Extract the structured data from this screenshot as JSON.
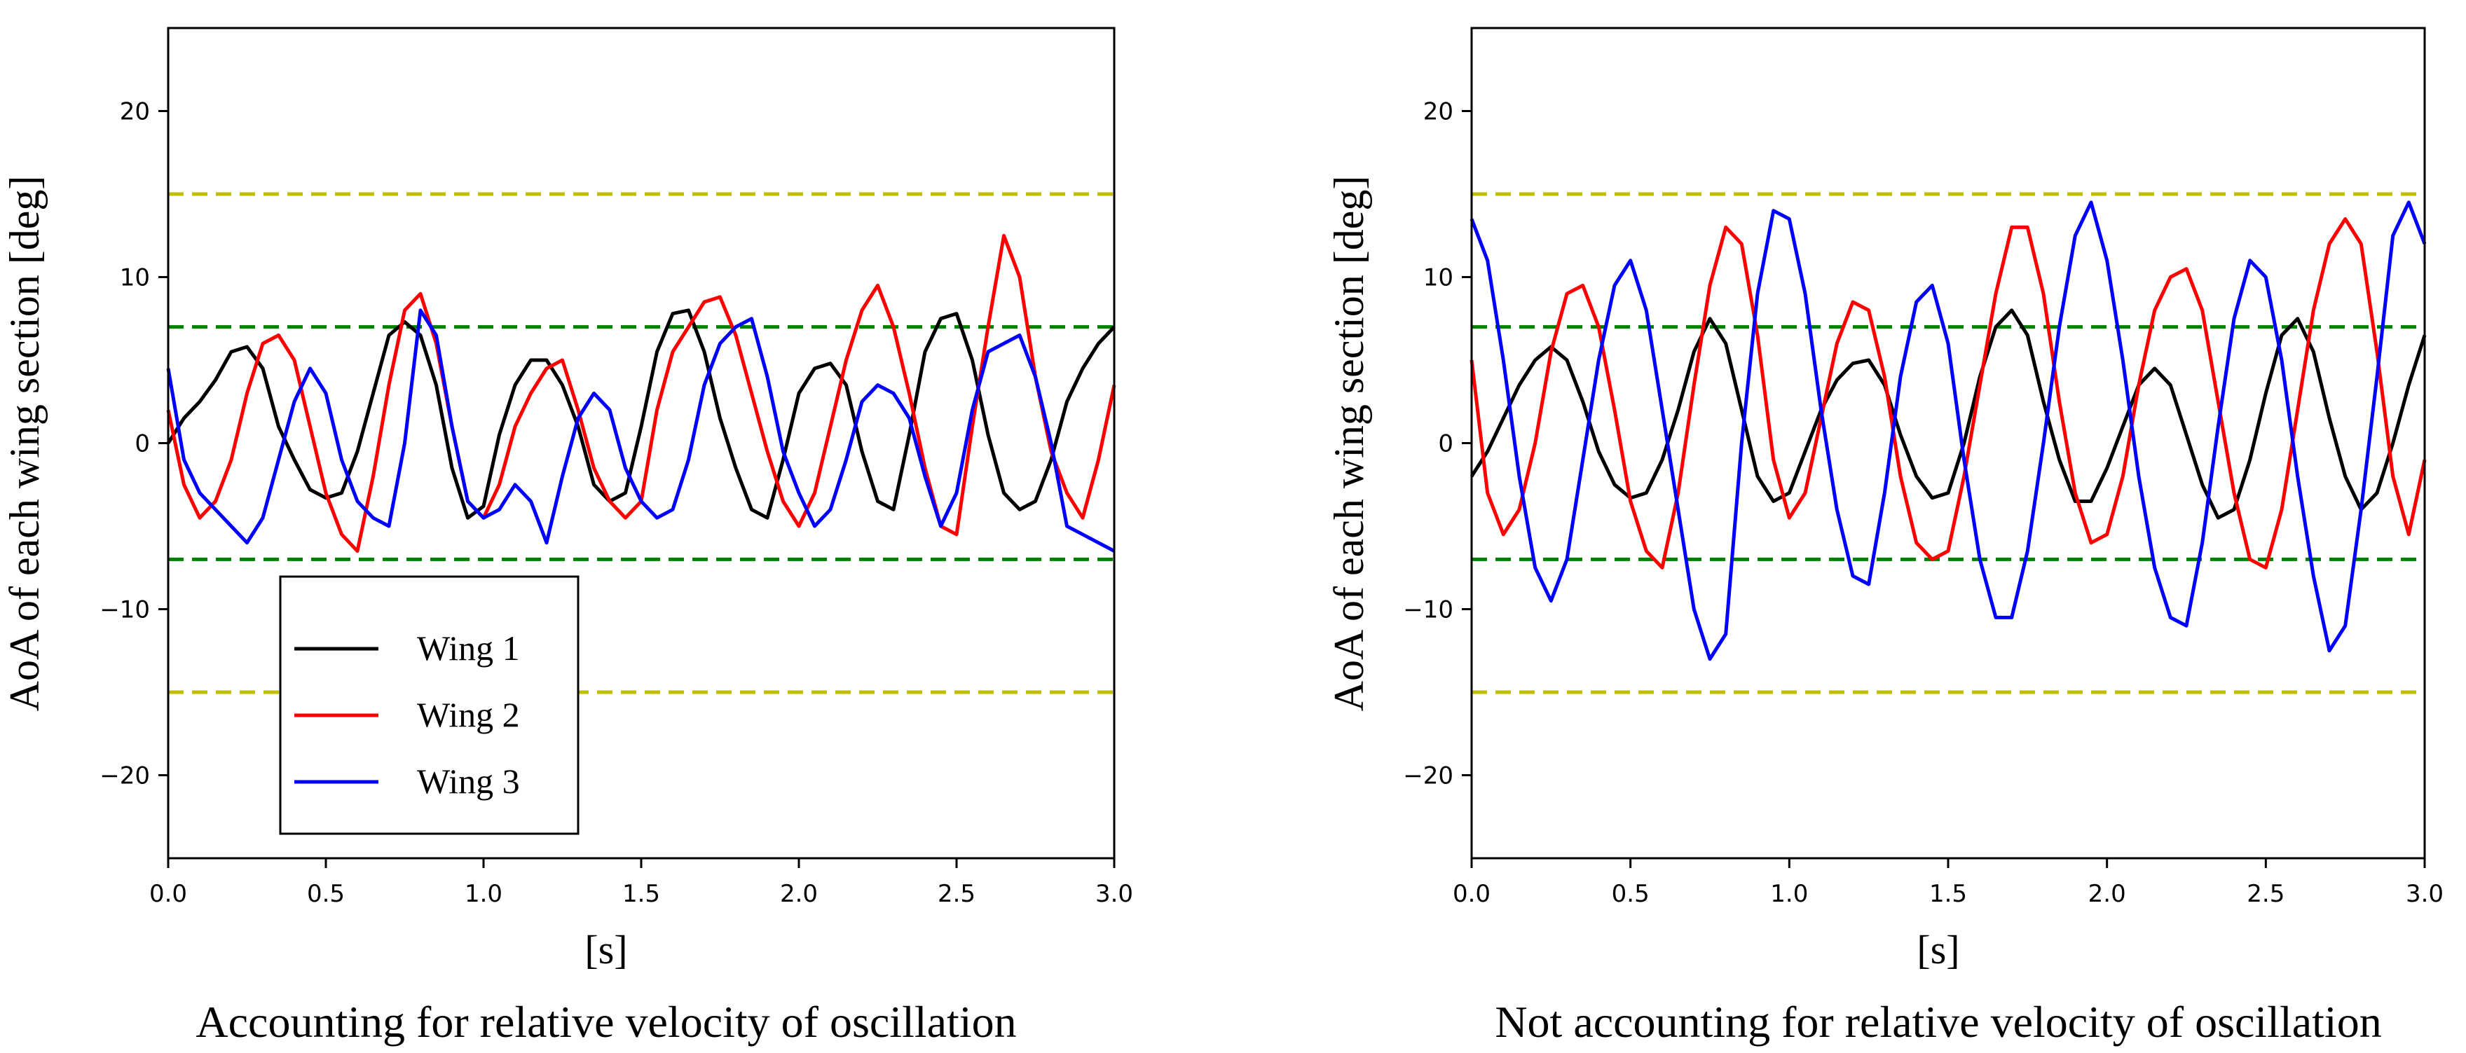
{
  "colors": {
    "wing1": "#000000",
    "wing2": "#ff0000",
    "wing3": "#0000ff",
    "yellow_ref": "#bfbf00",
    "green_ref": "#008000"
  },
  "chart_data": [
    {
      "type": "line",
      "caption": "Accounting for relative velocity of oscillation",
      "xlabel": "[s]",
      "ylabel": "AoA of each wing section [deg]",
      "xlim": [
        0,
        3.0
      ],
      "ylim": [
        -25,
        25
      ],
      "xticks": [
        0.0,
        0.5,
        1.0,
        1.5,
        2.0,
        2.5,
        3.0
      ],
      "xtick_labels": [
        "0.0",
        "0.5",
        "1.0",
        "1.5",
        "2.0",
        "2.5",
        "3.0"
      ],
      "yticks": [
        -20,
        -10,
        0,
        10,
        20
      ],
      "ytick_labels": [
        "−20",
        "−10",
        "0",
        "10",
        "20"
      ],
      "grid": false,
      "legend_position": "lower-left",
      "legend": [
        "Wing 1",
        "Wing 2",
        "Wing 3"
      ],
      "reference_lines": [
        {
          "y": 15,
          "color": "yellow",
          "style": "dashed"
        },
        {
          "y": -15,
          "color": "yellow",
          "style": "dashed"
        },
        {
          "y": 7,
          "color": "green",
          "style": "dashed"
        },
        {
          "y": -7,
          "color": "green",
          "style": "dashed"
        }
      ],
      "series": [
        {
          "name": "Wing 1",
          "color": "#000000",
          "x": [
            0.0,
            0.05,
            0.1,
            0.15,
            0.2,
            0.25,
            0.3,
            0.35,
            0.4,
            0.45,
            0.5,
            0.55,
            0.6,
            0.65,
            0.7,
            0.75,
            0.8,
            0.85,
            0.9,
            0.95,
            1.0,
            1.05,
            1.1,
            1.15,
            1.2,
            1.25,
            1.3,
            1.35,
            1.4,
            1.45,
            1.5,
            1.55,
            1.6,
            1.65,
            1.7,
            1.75,
            1.8,
            1.85,
            1.9,
            1.95,
            2.0,
            2.05,
            2.1,
            2.15,
            2.2,
            2.25,
            2.3,
            2.35,
            2.4,
            2.45,
            2.5,
            2.55,
            2.6,
            2.65,
            2.7,
            2.75,
            2.8,
            2.85,
            2.9,
            2.95,
            3.0
          ],
          "y": [
            0.0,
            1.5,
            2.5,
            3.8,
            5.5,
            5.8,
            4.5,
            1.0,
            -1.0,
            -2.8,
            -3.3,
            -3.0,
            -0.5,
            3.0,
            6.5,
            7.3,
            6.5,
            3.5,
            -1.5,
            -4.5,
            -3.8,
            0.5,
            3.5,
            5.0,
            5.0,
            3.5,
            1.0,
            -2.5,
            -3.5,
            -3.0,
            1.0,
            5.5,
            7.8,
            8.0,
            5.5,
            1.5,
            -1.5,
            -4.0,
            -4.5,
            -1.0,
            3.0,
            4.5,
            4.8,
            3.5,
            -0.5,
            -3.5,
            -4.0,
            0.5,
            5.5,
            7.5,
            7.8,
            5.0,
            0.5,
            -3.0,
            -4.0,
            -3.5,
            -1.0,
            2.5,
            4.5,
            6.0,
            7.0
          ]
        },
        {
          "name": "Wing 2",
          "color": "#ff0000",
          "x": [
            0.0,
            0.05,
            0.1,
            0.15,
            0.2,
            0.25,
            0.3,
            0.35,
            0.4,
            0.45,
            0.5,
            0.55,
            0.6,
            0.65,
            0.7,
            0.75,
            0.8,
            0.85,
            0.9,
            0.95,
            1.0,
            1.05,
            1.1,
            1.15,
            1.2,
            1.25,
            1.3,
            1.35,
            1.4,
            1.45,
            1.5,
            1.55,
            1.6,
            1.65,
            1.7,
            1.75,
            1.8,
            1.85,
            1.9,
            1.95,
            2.0,
            2.05,
            2.1,
            2.15,
            2.2,
            2.25,
            2.3,
            2.35,
            2.4,
            2.45,
            2.5,
            2.55,
            2.6,
            2.65,
            2.7,
            2.75,
            2.8,
            2.85,
            2.9,
            2.95,
            3.0
          ],
          "y": [
            2.0,
            -2.5,
            -4.5,
            -3.5,
            -1.0,
            3.0,
            6.0,
            6.5,
            5.0,
            1.0,
            -3.0,
            -5.5,
            -6.5,
            -2.0,
            3.5,
            8.0,
            9.0,
            6.0,
            1.0,
            -3.5,
            -4.5,
            -2.5,
            1.0,
            3.0,
            4.5,
            5.0,
            2.0,
            -1.5,
            -3.5,
            -4.5,
            -3.5,
            2.0,
            5.5,
            7.0,
            8.5,
            8.8,
            6.5,
            3.0,
            -0.5,
            -3.5,
            -5.0,
            -3.0,
            1.0,
            5.0,
            8.0,
            9.5,
            7.0,
            3.0,
            -1.5,
            -5.0,
            -5.5,
            1.0,
            7.0,
            12.5,
            10.0,
            4.0,
            -0.5,
            -3.0,
            -4.5,
            -1.0,
            3.5
          ]
        },
        {
          "name": "Wing 3",
          "color": "#0000ff",
          "x": [
            0.0,
            0.05,
            0.1,
            0.15,
            0.2,
            0.25,
            0.3,
            0.35,
            0.4,
            0.45,
            0.5,
            0.55,
            0.6,
            0.65,
            0.7,
            0.75,
            0.8,
            0.85,
            0.9,
            0.95,
            1.0,
            1.05,
            1.1,
            1.15,
            1.2,
            1.25,
            1.3,
            1.35,
            1.4,
            1.45,
            1.5,
            1.55,
            1.6,
            1.65,
            1.7,
            1.75,
            1.8,
            1.85,
            1.9,
            1.95,
            2.0,
            2.05,
            2.1,
            2.15,
            2.2,
            2.25,
            2.3,
            2.35,
            2.4,
            2.45,
            2.5,
            2.55,
            2.6,
            2.65,
            2.7,
            2.75,
            2.8,
            2.85,
            2.9,
            2.95,
            3.0
          ],
          "y": [
            4.5,
            -1.0,
            -3.0,
            -4.0,
            -5.0,
            -6.0,
            -4.5,
            -1.0,
            2.5,
            4.5,
            3.0,
            -1.0,
            -3.5,
            -4.5,
            -5.0,
            0.0,
            8.0,
            6.5,
            1.0,
            -3.5,
            -4.5,
            -4.0,
            -2.5,
            -3.5,
            -6.0,
            -2.0,
            1.5,
            3.0,
            2.0,
            -1.5,
            -3.5,
            -4.5,
            -4.0,
            -1.0,
            3.5,
            6.0,
            7.0,
            7.5,
            4.0,
            -0.5,
            -3.0,
            -5.0,
            -4.0,
            -1.0,
            2.5,
            3.5,
            3.0,
            1.5,
            -2.0,
            -5.0,
            -3.0,
            2.0,
            5.5,
            6.0,
            6.5,
            4.0,
            0.0,
            -5.0,
            -5.5,
            -6.0,
            -6.5
          ]
        }
      ]
    },
    {
      "type": "line",
      "caption": "Not accounting for relative velocity of oscillation",
      "xlabel": "[s]",
      "ylabel": "AoA of each wing section [deg]",
      "xlim": [
        0,
        3.0
      ],
      "ylim": [
        -25,
        25
      ],
      "xticks": [
        0.0,
        0.5,
        1.0,
        1.5,
        2.0,
        2.5,
        3.0
      ],
      "xtick_labels": [
        "0.0",
        "0.5",
        "1.0",
        "1.5",
        "2.0",
        "2.5",
        "3.0"
      ],
      "yticks": [
        -20,
        -10,
        0,
        10,
        20
      ],
      "ytick_labels": [
        "−20",
        "−10",
        "0",
        "10",
        "20"
      ],
      "grid": false,
      "reference_lines": [
        {
          "y": 15,
          "color": "yellow",
          "style": "dashed"
        },
        {
          "y": -15,
          "color": "yellow",
          "style": "dashed"
        },
        {
          "y": 7,
          "color": "green",
          "style": "dashed"
        },
        {
          "y": -7,
          "color": "green",
          "style": "dashed"
        }
      ],
      "series": [
        {
          "name": "Wing 1",
          "color": "#000000",
          "x": [
            0.0,
            0.05,
            0.1,
            0.15,
            0.2,
            0.25,
            0.3,
            0.35,
            0.4,
            0.45,
            0.5,
            0.55,
            0.6,
            0.65,
            0.7,
            0.75,
            0.8,
            0.85,
            0.9,
            0.95,
            1.0,
            1.05,
            1.1,
            1.15,
            1.2,
            1.25,
            1.3,
            1.35,
            1.4,
            1.45,
            1.5,
            1.55,
            1.6,
            1.65,
            1.7,
            1.75,
            1.8,
            1.85,
            1.9,
            1.95,
            2.0,
            2.05,
            2.1,
            2.15,
            2.2,
            2.25,
            2.3,
            2.35,
            2.4,
            2.45,
            2.5,
            2.55,
            2.6,
            2.65,
            2.7,
            2.75,
            2.8,
            2.85,
            2.9,
            2.95,
            3.0
          ],
          "y": [
            -2.0,
            -0.5,
            1.5,
            3.5,
            5.0,
            5.8,
            5.0,
            2.5,
            -0.5,
            -2.5,
            -3.3,
            -3.0,
            -1.0,
            2.0,
            5.5,
            7.5,
            6.0,
            2.0,
            -2.0,
            -3.5,
            -3.0,
            -0.5,
            2.0,
            3.8,
            4.8,
            5.0,
            3.5,
            0.5,
            -2.0,
            -3.3,
            -3.0,
            0.0,
            4.0,
            7.0,
            8.0,
            6.5,
            2.5,
            -1.0,
            -3.5,
            -3.5,
            -1.5,
            1.0,
            3.5,
            4.5,
            3.5,
            0.5,
            -2.5,
            -4.5,
            -4.0,
            -1.0,
            3.0,
            6.5,
            7.5,
            5.5,
            1.5,
            -2.0,
            -4.0,
            -3.0,
            0.0,
            3.5,
            6.5
          ]
        },
        {
          "name": "Wing 2",
          "color": "#ff0000",
          "x": [
            0.0,
            0.05,
            0.1,
            0.15,
            0.2,
            0.25,
            0.3,
            0.35,
            0.4,
            0.45,
            0.5,
            0.55,
            0.6,
            0.65,
            0.7,
            0.75,
            0.8,
            0.85,
            0.9,
            0.95,
            1.0,
            1.05,
            1.1,
            1.15,
            1.2,
            1.25,
            1.3,
            1.35,
            1.4,
            1.45,
            1.5,
            1.55,
            1.6,
            1.65,
            1.7,
            1.75,
            1.8,
            1.85,
            1.9,
            1.95,
            2.0,
            2.05,
            2.1,
            2.15,
            2.2,
            2.25,
            2.3,
            2.35,
            2.4,
            2.45,
            2.5,
            2.55,
            2.6,
            2.65,
            2.7,
            2.75,
            2.8,
            2.85,
            2.9,
            2.95,
            3.0
          ],
          "y": [
            5.0,
            -3.0,
            -5.5,
            -4.0,
            0.0,
            5.5,
            9.0,
            9.5,
            7.0,
            2.0,
            -3.5,
            -6.5,
            -7.5,
            -3.0,
            3.5,
            9.5,
            13.0,
            12.0,
            6.5,
            -1.0,
            -4.5,
            -3.0,
            1.5,
            6.0,
            8.5,
            8.0,
            4.0,
            -2.0,
            -6.0,
            -7.0,
            -6.5,
            -2.0,
            3.5,
            9.0,
            13.0,
            13.0,
            9.0,
            2.5,
            -3.0,
            -6.0,
            -5.5,
            -2.0,
            3.5,
            8.0,
            10.0,
            10.5,
            8.0,
            2.5,
            -3.0,
            -7.0,
            -7.5,
            -4.0,
            2.0,
            8.0,
            12.0,
            13.5,
            12.0,
            5.5,
            -2.0,
            -5.5,
            -1.0
          ]
        },
        {
          "name": "Wing 3",
          "color": "#0000ff",
          "x": [
            0.0,
            0.05,
            0.1,
            0.15,
            0.2,
            0.25,
            0.3,
            0.35,
            0.4,
            0.45,
            0.5,
            0.55,
            0.6,
            0.65,
            0.7,
            0.75,
            0.8,
            0.85,
            0.9,
            0.95,
            1.0,
            1.05,
            1.1,
            1.15,
            1.2,
            1.25,
            1.3,
            1.35,
            1.4,
            1.45,
            1.5,
            1.55,
            1.6,
            1.65,
            1.7,
            1.75,
            1.8,
            1.85,
            1.9,
            1.95,
            2.0,
            2.05,
            2.1,
            2.15,
            2.2,
            2.25,
            2.3,
            2.35,
            2.4,
            2.45,
            2.5,
            2.55,
            2.6,
            2.65,
            2.7,
            2.75,
            2.8,
            2.85,
            2.9,
            2.95,
            3.0
          ],
          "y": [
            13.5,
            11.0,
            5.0,
            -2.0,
            -7.5,
            -9.5,
            -7.0,
            -1.0,
            5.0,
            9.5,
            11.0,
            8.0,
            2.0,
            -4.0,
            -10.0,
            -13.0,
            -11.5,
            0.0,
            9.0,
            14.0,
            13.5,
            9.0,
            2.0,
            -4.0,
            -8.0,
            -8.5,
            -3.0,
            4.0,
            8.5,
            9.5,
            6.0,
            -1.0,
            -7.0,
            -10.5,
            -10.5,
            -6.5,
            0.0,
            7.0,
            12.5,
            14.5,
            11.0,
            5.0,
            -2.0,
            -7.5,
            -10.5,
            -11.0,
            -6.0,
            1.0,
            7.5,
            11.0,
            10.0,
            5.0,
            -2.0,
            -8.0,
            -12.5,
            -11.0,
            -4.0,
            4.0,
            12.5,
            14.5,
            12.0
          ]
        }
      ]
    }
  ]
}
